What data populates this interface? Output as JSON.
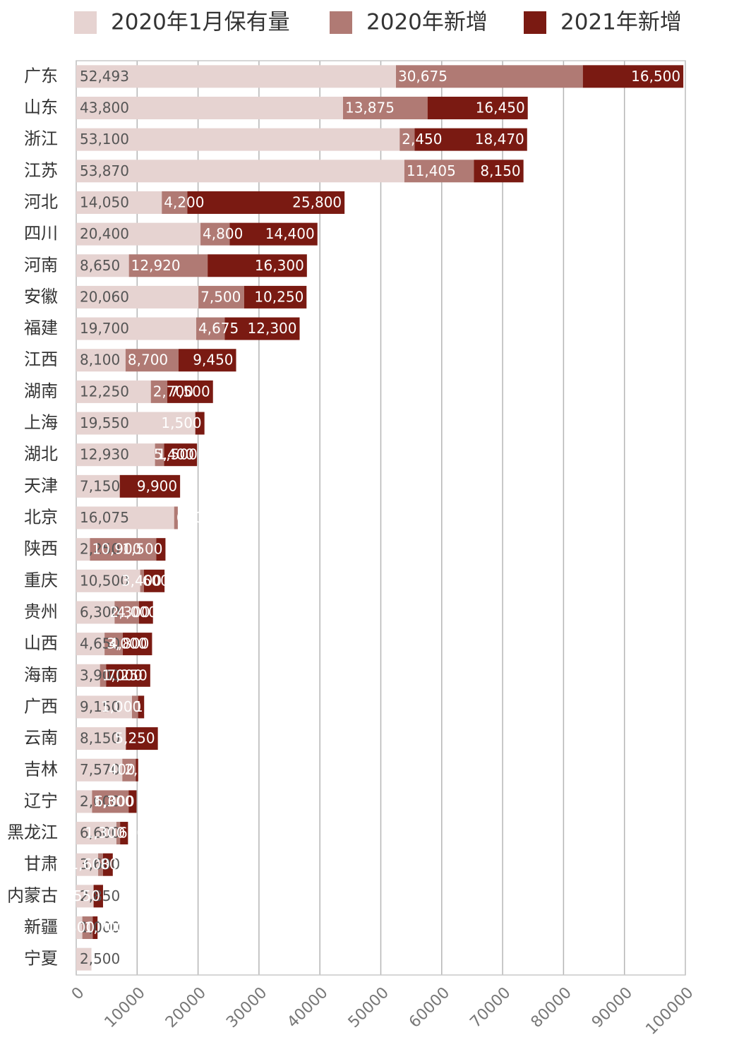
{
  "chart_data": {
    "type": "stacked-barh",
    "categories": [
      "广东",
      "山东",
      "浙江",
      "江苏",
      "河北",
      "四川",
      "河南",
      "安徽",
      "福建",
      "江西",
      "湖南",
      "上海",
      "湖北",
      "天津",
      "北京",
      "陕西",
      "重庆",
      "贵州",
      "山西",
      "海南",
      "广西",
      "云南",
      "吉林",
      "辽宁",
      "黑龙江",
      "甘肃",
      "内蒙古",
      "新疆",
      "宁夏"
    ],
    "series": [
      {
        "name": "2020年1月保有量",
        "color": "#e6d3d1",
        "values": [
          52493,
          43800,
          53100,
          53870,
          14050,
          20400,
          8650,
          20060,
          19700,
          8100,
          12250,
          19550,
          12930,
          7150,
          16075,
          2250,
          10500,
          6300,
          4650,
          3900,
          9150,
          8150,
          7570,
          2600,
          6600,
          3600,
          2850,
          1000,
          2500
        ],
        "value_labels": [
          "52,493",
          "43,800",
          "53,100",
          "53,870",
          "14,050",
          "20,400",
          "8,650",
          "20,060",
          "19,700",
          "8,100",
          "12,250",
          "19,550",
          "12,930",
          "7,150",
          "16,075",
          "2,250",
          "10,500",
          "6,300",
          "4,650",
          "3,900",
          "9,150",
          "8,150",
          "7,570",
          "2,600",
          "6,600",
          "3,600",
          "2,850",
          "1,000",
          "2,500"
        ]
      },
      {
        "name": "2020年新增",
        "color": "#b07a74",
        "values": [
          30675,
          13875,
          2450,
          11405,
          4200,
          4800,
          12920,
          7500,
          4675,
          8700,
          2700,
          0,
          1500,
          0,
          600,
          10900,
          600,
          4000,
          3000,
          1000,
          1000,
          0,
          2200,
          6000,
          600,
          800,
          0,
          1700,
          0
        ],
        "value_labels": [
          "30,675",
          "13,875",
          "2,450",
          "11,405",
          "4,200",
          "4,800",
          "12,920",
          "7,500",
          "4,675",
          "8,700",
          "2,700",
          null,
          "1,500",
          null,
          "600",
          "10,900",
          "600",
          "4,000",
          "3,000",
          "1,000",
          "1,000",
          null,
          "2,200",
          "6,000",
          "600",
          "800",
          null,
          "1,700",
          null
        ]
      },
      {
        "name": "2021年新增",
        "color": "#7a1a12",
        "values": [
          16500,
          16450,
          18470,
          8150,
          25800,
          14400,
          16300,
          10250,
          12300,
          9450,
          7500,
          1500,
          5400,
          9900,
          0,
          1500,
          3400,
          2300,
          4800,
          7250,
          1000,
          5250,
          400,
          1300,
          1300,
          1600,
          1550,
          800,
          0
        ],
        "value_labels": [
          "16,500",
          "16,450",
          "18,470",
          "8,150",
          "25,800",
          "14,400",
          "16,300",
          "10,250",
          "12,300",
          "9,450",
          "7,500",
          "1,500",
          "5,400",
          "9,900",
          null,
          "1,500",
          "3,400",
          "2,300",
          "4,800",
          "7,250",
          "1,000",
          "5,250",
          "400",
          "1,300",
          "1,300",
          "1,600",
          "1,550",
          "800",
          null
        ]
      }
    ],
    "xlim": [
      0,
      100000
    ],
    "xticks": [
      0,
      10000,
      20000,
      30000,
      40000,
      50000,
      60000,
      70000,
      80000,
      90000,
      100000
    ],
    "grid": true
  }
}
